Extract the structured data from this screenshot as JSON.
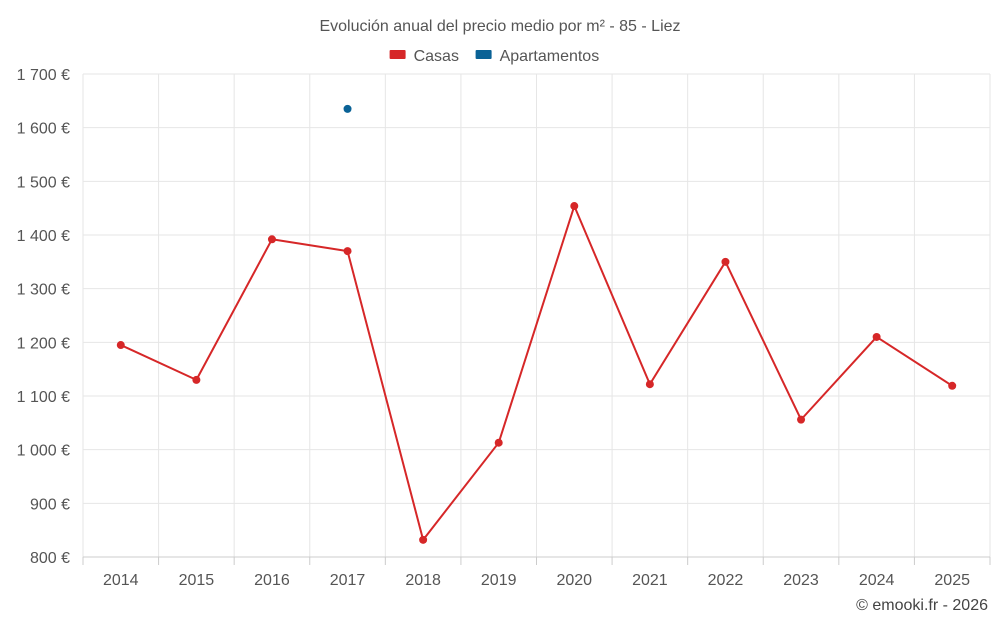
{
  "chart_data": {
    "type": "line",
    "title": "Evolución anual del precio medio por m² - 85 - Liez",
    "categories": [
      "2014",
      "2015",
      "2016",
      "2017",
      "2018",
      "2019",
      "2020",
      "2021",
      "2022",
      "2023",
      "2024",
      "2025"
    ],
    "series": [
      {
        "name": "Casas",
        "color": "#d62728",
        "values": [
          1195,
          1130,
          1392,
          1370,
          832,
          1013,
          1454,
          1122,
          1350,
          1056,
          1210,
          1119
        ]
      },
      {
        "name": "Apartamentos",
        "color": "#0a6296",
        "values": [
          null,
          null,
          null,
          1635,
          null,
          null,
          null,
          null,
          null,
          null,
          null,
          null
        ]
      }
    ],
    "ylim": [
      800,
      1700
    ],
    "yticks": [
      800,
      900,
      1000,
      1100,
      1200,
      1300,
      1400,
      1500,
      1600,
      1700
    ],
    "ytick_labels": [
      "800 €",
      "900 €",
      "1 000 €",
      "1 100 €",
      "1 200 €",
      "1 300 €",
      "1 400 €",
      "1 500 €",
      "1 600 €",
      "1 700 €"
    ],
    "xlabel": "",
    "ylabel": "",
    "grid": true,
    "legend": "top-center"
  },
  "credit": "© emooki.fr - 2026"
}
